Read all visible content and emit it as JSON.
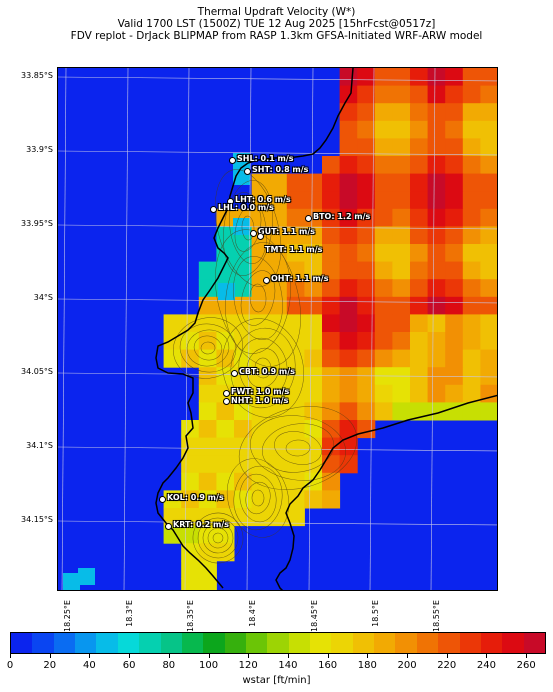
{
  "title": {
    "line1": "Thermal Updraft Velocity (W*)",
    "line2": "Valid 1700 LST (1500Z) TUE 12 Aug 2025 [15hrFcst@0517z]",
    "line3": "FDV replot - DrJack BLIPMAP from RASP 1.3km GFSA-Initiated WRF-ARW model"
  },
  "map": {
    "lat_labels": [
      "33.85°S",
      "33.9°S",
      "33.95°S",
      "34°S",
      "34.05°S",
      "34.1°S",
      "34.15°S"
    ],
    "lon_labels": [
      "18.25°E",
      "18.3°E",
      "18.35°E",
      "18.4°E",
      "18.45°E",
      "18.5°E",
      "18.55°E"
    ],
    "ocean_color": "#0b24ee",
    "stations": [
      {
        "label": "SHL: 0.1 m/s"
      },
      {
        "label": "SHT: 0.8 m/s"
      },
      {
        "label": "LHT: 0.6 m/s"
      },
      {
        "label": "LHL: 0.0 m/s"
      },
      {
        "label": "BTO: 1.2 m/s"
      },
      {
        "label": "GUT: 1.1 m/s"
      },
      {
        "label": "TMT: 1.1 m/s"
      },
      {
        "label": "OHT: 1.1 m/s"
      },
      {
        "label": "CBT: 0.9 m/s"
      },
      {
        "label": "FWT: 1.0 m/s"
      },
      {
        "label": "NHT: 1.0 m/s"
      },
      {
        "label": "KOL: 0.9 m/s"
      },
      {
        "label": "KRT: 0.2 m/s"
      }
    ]
  },
  "colorbar": {
    "label": "wstar [ft/min]",
    "ticks": [
      "0",
      "20",
      "40",
      "60",
      "80",
      "100",
      "120",
      "140",
      "160",
      "180",
      "200",
      "220",
      "240",
      "260"
    ],
    "colors": [
      "#0b24ee",
      "#0a45f2",
      "#0a6cf2",
      "#0896ef",
      "#07bce8",
      "#06d9d9",
      "#05d0b0",
      "#06c488",
      "#07b84e",
      "#0ca61c",
      "#36b00d",
      "#6bc506",
      "#9dd404",
      "#c7df03",
      "#e6e205",
      "#ecd505",
      "#f0c004",
      "#f2aa03",
      "#f29004",
      "#f07304",
      "#ee5506",
      "#eb3707",
      "#e61d0a",
      "#dc0a12",
      "#c80a28"
    ]
  }
}
